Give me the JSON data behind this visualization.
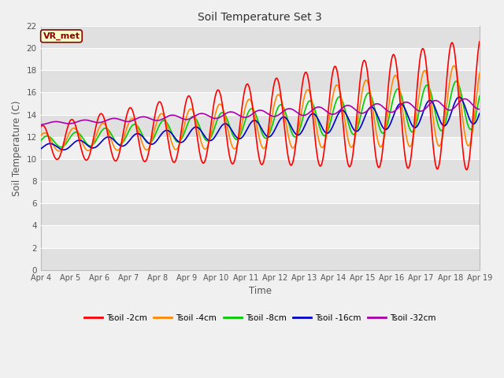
{
  "title": "Soil Temperature Set 3",
  "xlabel": "Time",
  "ylabel": "Soil Temperature (C)",
  "ylim": [
    0,
    22
  ],
  "yticks": [
    0,
    2,
    4,
    6,
    8,
    10,
    12,
    14,
    16,
    18,
    20,
    22
  ],
  "fig_bg": "#f0f0f0",
  "plot_bg_light": "#f0f0f0",
  "plot_bg_dark": "#e0e0e0",
  "annotation_text": "VR_met",
  "annotation_bg": "#ffffcc",
  "annotation_border": "#8b0000",
  "annotation_text_color": "#8b0000",
  "series_colors": {
    "Tsoil -2cm": "#ff0000",
    "Tsoil -4cm": "#ff8800",
    "Tsoil -8cm": "#00cc00",
    "Tsoil -16cm": "#0000cc",
    "Tsoil -32cm": "#aa00aa"
  },
  "x_tick_labels": [
    "Apr 4",
    "Apr 5",
    "Apr 6",
    "Apr 7",
    "Apr 8",
    "Apr 9",
    "Apr 10",
    "Apr 11",
    "Apr 12",
    "Apr 13",
    "Apr 14",
    "Apr 15",
    "Apr 16",
    "Apr 17",
    "Apr 18",
    "Apr 19"
  ],
  "n_days": 15,
  "samples_per_day": 48
}
